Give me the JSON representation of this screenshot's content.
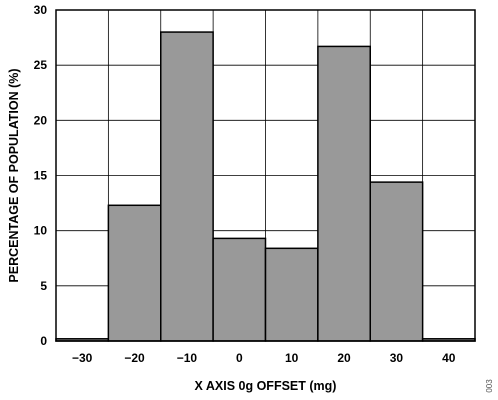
{
  "chart_data": {
    "type": "bar",
    "categories": [
      "-30",
      "-20",
      "-10",
      "0",
      "10",
      "20",
      "30",
      "40"
    ],
    "category_labels": [
      "−30",
      "−20",
      "−10",
      "0",
      "10",
      "20",
      "30",
      "40"
    ],
    "values": [
      0.2,
      12.3,
      28.0,
      9.3,
      8.4,
      26.7,
      14.4,
      0.2
    ],
    "xlabel": "X AXIS 0g OFFSET (mg)",
    "ylabel": "PERCENTAGE OF POPULATION (%)",
    "ylim": [
      0,
      30
    ],
    "yticks": [
      "0",
      "5",
      "10",
      "15",
      "20",
      "25",
      "30"
    ],
    "grid": true,
    "bar_color": "#999999",
    "figure_id": "003"
  }
}
